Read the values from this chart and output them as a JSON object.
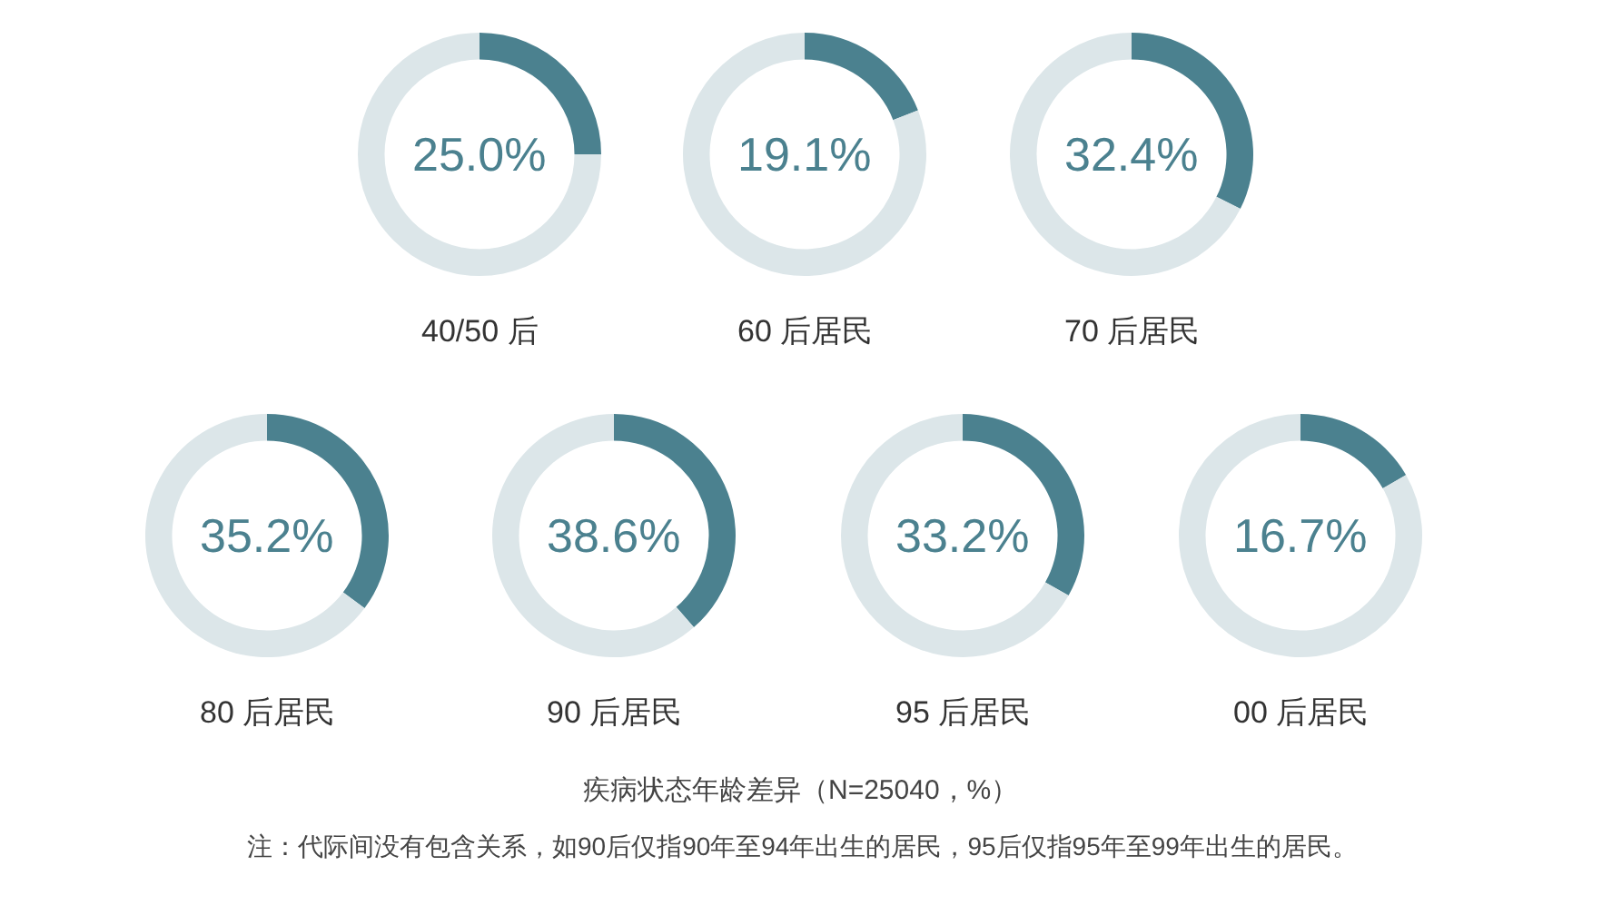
{
  "chart_data": [
    {
      "type": "donut",
      "title": "40/50 后",
      "categories": [
        null,
        null
      ],
      "values": [
        25.0,
        75.0
      ],
      "colors": [
        "#4b818f",
        "#dce6e9"
      ],
      "annotations": [
        "25.0%"
      ]
    },
    {
      "type": "donut",
      "title": "60 后居民",
      "categories": [
        null,
        null
      ],
      "values": [
        19.1,
        80.9
      ],
      "colors": [
        "#4b818f",
        "#dce6e9"
      ],
      "annotations": [
        "19.1%"
      ]
    },
    {
      "type": "donut",
      "title": "70 后居民",
      "categories": [
        null,
        null
      ],
      "values": [
        32.4,
        67.6
      ],
      "colors": [
        "#4b818f",
        "#dce6e9"
      ],
      "annotations": [
        "32.4%"
      ]
    },
    {
      "type": "donut",
      "title": "80 后居民",
      "categories": [
        null,
        null
      ],
      "values": [
        35.2,
        64.8
      ],
      "colors": [
        "#4b818f",
        "#dce6e9"
      ],
      "annotations": [
        "35.2%"
      ]
    },
    {
      "type": "donut",
      "title": "90 后居民",
      "categories": [
        null,
        null
      ],
      "values": [
        38.6,
        61.4
      ],
      "colors": [
        "#4b818f",
        "#dce6e9"
      ],
      "annotations": [
        "38.6%"
      ]
    },
    {
      "type": "donut",
      "title": "95 后居民",
      "categories": [
        null,
        null
      ],
      "values": [
        33.2,
        66.8
      ],
      "colors": [
        "#4b818f",
        "#dce6e9"
      ],
      "annotations": [
        "33.2%"
      ]
    },
    {
      "type": "donut",
      "title": "00 后居民",
      "categories": [
        null,
        null
      ],
      "values": [
        16.7,
        83.3
      ],
      "colors": [
        "#4b818f",
        "#dce6e9"
      ],
      "annotations": [
        "16.7%"
      ]
    },
    {
      "type": "other",
      "title": "疾病状态年龄差异（N=25040，%）",
      "annotations": [
        "注：代际间没有包含关系，如90后仅指90年至94年出生的居民，95后仅指95年至99年出生的居民。"
      ]
    }
  ]
}
